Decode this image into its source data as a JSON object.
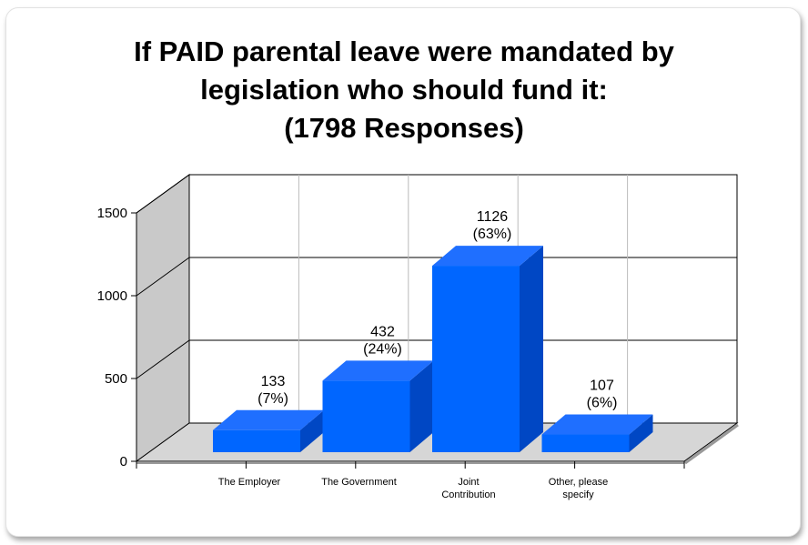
{
  "chart_data": {
    "type": "bar",
    "title_lines": [
      "If PAID parental leave were mandated by",
      "legislation who should fund it:",
      "(1798  Responses)"
    ],
    "categories": [
      "The Employer",
      "The Government",
      "Joint Contribution",
      "Other, please specify"
    ],
    "category_label_lines": [
      [
        "The Employer"
      ],
      [
        "The Government"
      ],
      [
        "Joint",
        "Contribution"
      ],
      [
        "Other, please",
        "specify"
      ]
    ],
    "values": [
      133,
      432,
      1126,
      107
    ],
    "percent_labels": [
      "(7%)",
      "(24%)",
      "(63%)",
      "(6%)"
    ],
    "ylim": [
      0,
      1500
    ],
    "yticks": [
      0,
      500,
      1000,
      1500
    ],
    "grid": true,
    "three_d": true,
    "colors": {
      "bar_front": "#0066ff",
      "bar_top": "#1f6fff",
      "bar_side": "#0047c4",
      "wall": "#c9c9c9",
      "floor": "#d6d6d6",
      "grid": "#555555"
    }
  }
}
